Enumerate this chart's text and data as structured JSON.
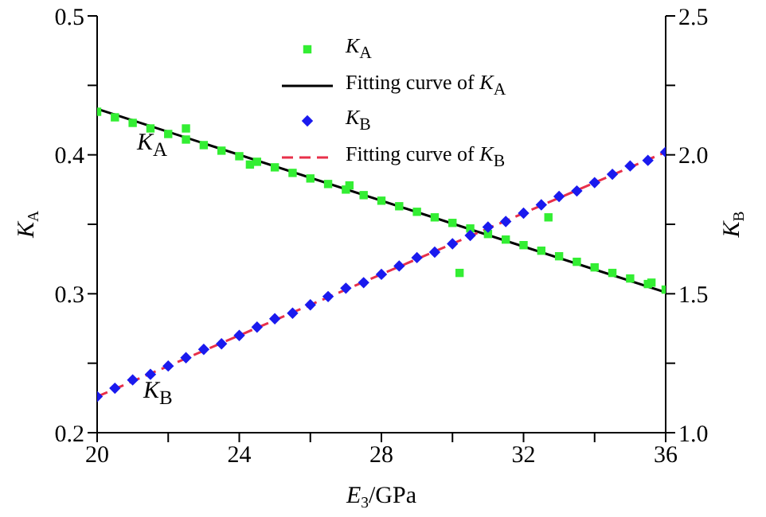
{
  "chart_data": {
    "type": "scatter",
    "xlabel": "E$_{3}$/GPa",
    "ylabel": "K$_{A}$",
    "y2label": "K$_{B}$",
    "xlim": [
      20,
      36
    ],
    "xticks": [
      20,
      {
        "value": 22,
        "label": null
      },
      24,
      {
        "value": 26,
        "label": null
      },
      28,
      {
        "value": 30,
        "label": null
      },
      32,
      {
        "value": 34,
        "label": null
      },
      36
    ],
    "ylim": [
      0.2,
      0.5
    ],
    "yticks": [
      {
        "value": 0.2,
        "label": "0.2"
      },
      {
        "value": 0.25,
        "label": null
      },
      {
        "value": 0.3,
        "label": "0.3"
      },
      {
        "value": 0.35,
        "label": null
      },
      {
        "value": 0.4,
        "label": "0.4"
      },
      {
        "value": 0.45,
        "label": null
      },
      {
        "value": 0.5,
        "label": "0.5"
      }
    ],
    "y2lim": [
      1.0,
      2.5
    ],
    "y2ticks": [
      {
        "value": 1.0,
        "label": "1.0"
      },
      {
        "value": 1.25,
        "label": null
      },
      {
        "value": 1.5,
        "label": "1.5"
      },
      {
        "value": 1.75,
        "label": null
      },
      {
        "value": 2.0,
        "label": "2.0"
      },
      {
        "value": 2.25,
        "label": null
      },
      {
        "value": 2.5,
        "label": "2.5"
      }
    ],
    "grid": false,
    "legend": "top right",
    "annotations": [
      "K$_{A}$",
      "K$_{B}$"
    ],
    "series": [
      {
        "name": "K$_{A}$",
        "marker": "square",
        "color": "#33ee33",
        "x": [
          20,
          20.5,
          21,
          21.5,
          22,
          22.5,
          23,
          23.5,
          24,
          24.5,
          25,
          25.5,
          26,
          26.5,
          27,
          27.5,
          28,
          28.5,
          29,
          29.5,
          30,
          30.5,
          31,
          31.5,
          32,
          32.5,
          33,
          33.5,
          34,
          34.5,
          35,
          35.5,
          36,
          22.5,
          24.3,
          27.1,
          30.2,
          32.7,
          35.6
        ],
        "values": [
          0.431,
          0.427,
          0.423,
          0.419,
          0.415,
          0.411,
          0.407,
          0.403,
          0.399,
          0.395,
          0.391,
          0.387,
          0.383,
          0.379,
          0.375,
          0.371,
          0.367,
          0.363,
          0.359,
          0.355,
          0.351,
          0.347,
          0.343,
          0.339,
          0.335,
          0.331,
          0.327,
          0.323,
          0.319,
          0.315,
          0.311,
          0.307,
          0.303,
          0.419,
          0.393,
          0.378,
          0.315,
          0.355,
          0.308
        ]
      },
      {
        "name": "Fitting curve of K$_{A}$",
        "type": "line",
        "marker": "none",
        "line_style": "solid",
        "color": "#000000",
        "x": [
          20,
          36
        ],
        "values": [
          0.433,
          0.301
        ]
      },
      {
        "name": "K$_{B}$",
        "marker": "diamond",
        "axis": "y2",
        "color": "#1a1aee",
        "x": [
          20,
          20.5,
          21,
          21.5,
          22,
          22.5,
          23,
          23.5,
          24,
          24.5,
          25,
          25.5,
          26,
          26.5,
          27,
          27.5,
          28,
          28.5,
          29,
          29.5,
          30,
          30.5,
          31,
          31.5,
          32,
          32.5,
          33,
          33.5,
          34,
          34.5,
          35,
          35.5,
          36
        ],
        "values": [
          1.13,
          1.16,
          1.19,
          1.21,
          1.24,
          1.27,
          1.3,
          1.32,
          1.35,
          1.38,
          1.41,
          1.43,
          1.46,
          1.49,
          1.52,
          1.54,
          1.57,
          1.6,
          1.63,
          1.65,
          1.68,
          1.71,
          1.74,
          1.76,
          1.79,
          1.82,
          1.85,
          1.87,
          1.9,
          1.93,
          1.96,
          1.98,
          2.01
        ]
      },
      {
        "name": "Fitting curve of K$_{B}$",
        "type": "line",
        "marker": "none",
        "line_style": "dashed",
        "axis": "y2",
        "color": "#e8304a",
        "x": [
          20,
          36
        ],
        "values": [
          1.13,
          2.01
        ]
      }
    ]
  }
}
